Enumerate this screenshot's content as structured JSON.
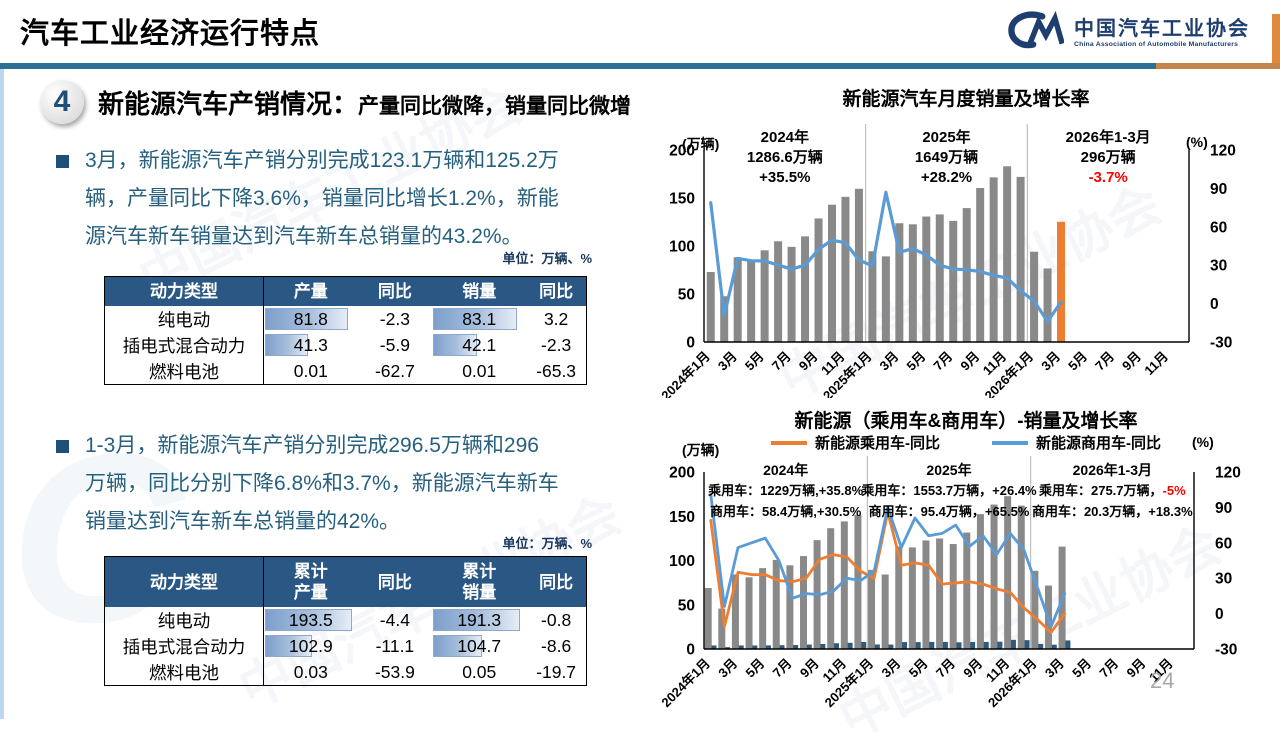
{
  "header": {
    "title": "汽车工业经济运行特点",
    "logo": {
      "org_cn": "中国汽车工业协会",
      "org_en": "China Association of Automobile Manufacturers"
    }
  },
  "section": {
    "number": "4",
    "heading_main": "新能源汽车产销情况：",
    "heading_sub": "产量同比微降，销量同比微增"
  },
  "bullets": [
    {
      "text": "3月，新能源汽车产销分别完成123.1万辆和125.2万\n辆，产量同比下降3.6%，销量同比增长1.2%，新能\n源汽车新车销量达到汽车新车总销量的43.2%。"
    },
    {
      "text": "1-3月，新能源汽车产销分别完成296.5万辆和296\n万辆，同比分别下降6.8%和3.7%，新能源汽车新车\n销量达到汽车新车总销量的42%。"
    }
  ],
  "unit_label": "单位：万辆、%",
  "tables": [
    {
      "headers": [
        "动力类型",
        "产量",
        "同比",
        "销量",
        "同比"
      ],
      "bar_cols": [
        1,
        3
      ],
      "bar_max": 95,
      "rows": [
        {
          "cells": [
            "纯电动",
            "81.8",
            "-2.3",
            "83.1",
            "3.2"
          ]
        },
        {
          "cells": [
            "插电式混合动力",
            "41.3",
            "-5.9",
            "42.1",
            "-2.3"
          ]
        },
        {
          "cells": [
            "燃料电池",
            "0.01",
            "-62.7",
            "0.01",
            "-65.3"
          ]
        }
      ]
    },
    {
      "headers": [
        "动力类型",
        "累计\n产量",
        "同比",
        "累计\n销量",
        "同比"
      ],
      "bar_cols": [
        1,
        3
      ],
      "bar_max": 212,
      "rows": [
        {
          "cells": [
            "纯电动",
            "193.5",
            "-4.4",
            "191.3",
            "-0.8"
          ]
        },
        {
          "cells": [
            "插电式混合动力",
            "102.9",
            "-11.1",
            "104.7",
            "-8.6"
          ]
        },
        {
          "cells": [
            "燃料电池",
            "0.03",
            "-53.9",
            "0.05",
            "-19.7"
          ]
        }
      ]
    }
  ],
  "watermark": "中国汽车工业协会",
  "page_number": "24",
  "chart_data": [
    {
      "type": "bar",
      "title": "新能源汽车月度销量及增长率",
      "slots": 36,
      "y_left": {
        "label": "(万辆)",
        "min": 0,
        "max": 200,
        "ticks": [
          0,
          50,
          100,
          150,
          200
        ]
      },
      "y_right": {
        "label": "(%)",
        "min": -30,
        "max": 120,
        "ticks": [
          -30,
          0,
          30,
          60,
          90,
          120
        ]
      },
      "x_tick_labels": [
        "2024年1月",
        "3月",
        "5月",
        "7月",
        "9月",
        "11月",
        "2025年1月",
        "3月",
        "5月",
        "7月",
        "9月",
        "11月",
        "2026年1月",
        "3月",
        "5月",
        "7月",
        "9月",
        "11月"
      ],
      "separators": [
        12,
        24
      ],
      "bar_series": [
        {
          "name": "月度销量",
          "color": "#898989",
          "highlight_index": 26,
          "highlight_color": "#ED7D31",
          "values": [
            72.9,
            47.7,
            88.3,
            85,
            95.5,
            104.9,
            99.1,
            110,
            128.7,
            143,
            151.2,
            159.6,
            94.5,
            89.2,
            123.7,
            122.6,
            130.7,
            132.9,
            126.2,
            139.5,
            160.4,
            171.5,
            183,
            172,
            94,
            76.6,
            125.2,
            null,
            null,
            null,
            null,
            null,
            null,
            null,
            null,
            null
          ]
        }
      ],
      "line_series": [
        {
          "name": "增长率",
          "color": "#5B9BD5",
          "values": [
            78.8,
            -9.2,
            35.3,
            33.5,
            33.3,
            30.1,
            27,
            30,
            42.3,
            49.6,
            47.4,
            34.1,
            29.4,
            87,
            40.1,
            43,
            38,
            30,
            27,
            26.5,
            25,
            22,
            20,
            10,
            2,
            -14,
            1.2,
            null,
            null,
            null,
            null,
            null,
            null,
            null,
            null,
            null
          ]
        }
      ],
      "annotations": [
        {
          "title": "2024年",
          "lines": [
            [
              {
                "t": "1286.6万辆"
              }
            ],
            [
              {
                "t": "+35.5%"
              }
            ]
          ]
        },
        {
          "title": "2025年",
          "lines": [
            [
              {
                "t": "1649万辆"
              }
            ],
            [
              {
                "t": "+28.2%"
              }
            ]
          ]
        },
        {
          "title": "2026年1-3月",
          "lines": [
            [
              {
                "t": "296万辆"
              }
            ],
            [
              {
                "t": "-3.7%",
                "red": true
              }
            ]
          ]
        }
      ]
    },
    {
      "type": "bar",
      "title": "新能源（乘用车&商用车）-销量及增长率",
      "slots": 36,
      "legend": [
        {
          "label": "新能源乘用车-同比",
          "color": "#ED7D31"
        },
        {
          "label": "新能源商用车-同比",
          "color": "#5B9BD5"
        }
      ],
      "y_left": {
        "label": "(万辆)",
        "min": 0,
        "max": 200,
        "ticks": [
          0,
          50,
          100,
          150,
          200
        ]
      },
      "y_right": {
        "label": "(%)",
        "min": -30,
        "max": 120,
        "ticks": [
          -30,
          0,
          30,
          60,
          90,
          120
        ]
      },
      "x_tick_labels": [
        "2024年1月",
        "3月",
        "5月",
        "7月",
        "9月",
        "11月",
        "2025年1月",
        "3月",
        "5月",
        "7月",
        "9月",
        "11月",
        "2026年1月",
        "3月",
        "5月",
        "7月",
        "9月",
        "11月"
      ],
      "separators": [
        12,
        24
      ],
      "bar_series": [
        {
          "name": "乘用车销量",
          "color": "#898989",
          "values": [
            68.9,
            45.6,
            84.3,
            81,
            91.4,
            100.6,
            94.6,
            105,
            123,
            136.5,
            144.2,
            151.6,
            89.4,
            84.2,
            115.9,
            114.8,
            122.7,
            124.9,
            118.6,
            131.6,
            152.4,
            163.2,
            172.7,
            162,
            88.3,
            71.7,
            115.7,
            null,
            null,
            null,
            null,
            null,
            null,
            null,
            null,
            null
          ]
        },
        {
          "name": "商用车销量",
          "color": "#2E5B7C",
          "values": [
            4,
            2.1,
            4,
            4,
            4.1,
            4.3,
            4.5,
            5,
            5.7,
            6.5,
            7,
            8,
            5.1,
            5,
            7.8,
            7.8,
            8,
            8,
            7.6,
            7.9,
            8,
            8.3,
            10.3,
            10,
            5.7,
            4.9,
            9.7,
            null,
            null,
            null,
            null,
            null,
            null,
            null,
            null,
            null
          ]
        }
      ],
      "line_series": [
        {
          "name": "新能源乘用车-同比",
          "color": "#ED7D31",
          "values": [
            79,
            -11,
            35,
            33,
            33,
            28,
            27,
            30,
            46,
            50,
            48,
            36,
            30,
            86,
            41,
            43,
            41,
            25,
            26,
            27,
            25,
            21,
            18,
            5,
            -5,
            -16,
            0,
            null,
            null,
            null,
            null,
            null,
            null,
            null,
            null,
            null
          ]
        },
        {
          "name": "新能源商用车-同比",
          "color": "#5B9BD5",
          "values": [
            101,
            6,
            56,
            60,
            64,
            45,
            13,
            17,
            16,
            19,
            30,
            28,
            36,
            90,
            56,
            81,
            66,
            68,
            75,
            57,
            66,
            50,
            68,
            54,
            22,
            -11,
            17,
            null,
            null,
            null,
            null,
            null,
            null,
            null,
            null,
            null
          ]
        }
      ],
      "annotations": [
        {
          "title": "2024年",
          "lines": [
            [
              {
                "t": "乘用车：1229万辆,+35.8%"
              }
            ],
            [
              {
                "t": "商用车：58.4万辆,+30.5%"
              }
            ]
          ]
        },
        {
          "title": "2025年",
          "lines": [
            [
              {
                "t": "乘用车：1553.7万辆，+26.4%"
              }
            ],
            [
              {
                "t": "商用车：95.4万辆，+65.5%"
              }
            ]
          ]
        },
        {
          "title": "2026年1-3月",
          "lines": [
            [
              {
                "t": "乘用车：275.7万辆，"
              },
              {
                "t": "-5%",
                "red": true
              }
            ],
            [
              {
                "t": "商用车：20.3万辆，+18.3%"
              }
            ]
          ]
        }
      ]
    }
  ]
}
